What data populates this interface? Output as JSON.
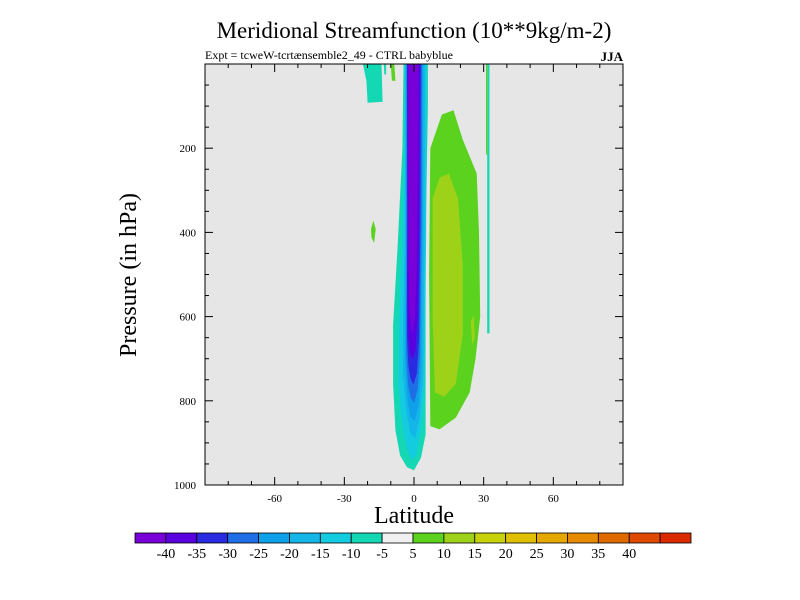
{
  "chart_data": {
    "type": "contour",
    "title": "Meridional Streamfunction (10**9kg/m-2)",
    "subtitle": "Expt = tcweW-tcrtænsemble2_49 - CTRL babyblue",
    "season": "JJA",
    "xlabel": "Latitude",
    "ylabel": "Pressure (in hPa)",
    "x_range": [
      -90,
      90
    ],
    "y_range": [
      0,
      1000
    ],
    "y_inverted": true,
    "x_ticks": [
      -60,
      -30,
      0,
      30,
      60
    ],
    "x_tick_labels": [
      "-60",
      "-30",
      "0",
      "30",
      "60"
    ],
    "y_ticks": [
      200,
      400,
      600,
      800,
      1000
    ],
    "y_tick_labels": [
      "200",
      "400",
      "600",
      "800",
      "1000"
    ],
    "background_color": "#e6e6e6",
    "colorbar": {
      "colors": [
        "#7800d8",
        "#5a00e0",
        "#2a2ae0",
        "#1e6ee6",
        "#0ea0e8",
        "#14b6e8",
        "#14cce0",
        "#14d8b4",
        "#f0f0f0",
        "#5ad21e",
        "#9ed218",
        "#c8d20a",
        "#e0c000",
        "#e6a800",
        "#e68a00",
        "#e06a00",
        "#e04a00",
        "#dc2a00"
      ],
      "labels": [
        "-40",
        "-35",
        "-30",
        "-25",
        "-20",
        "-15",
        "-10",
        "-5",
        "5",
        "10",
        "15",
        "20",
        "25",
        "30",
        "35",
        "40"
      ]
    },
    "contours": [
      {
        "level": "-10 to -5",
        "color": "#14d8b4",
        "points": [
          [
            -22,
            0
          ],
          [
            -14,
            0
          ],
          [
            -13.5,
            90
          ],
          [
            -20,
            92
          ],
          [
            -20.5,
            40
          ]
        ]
      },
      {
        "level": "-10 to -5",
        "color": "#14d8b4",
        "points": [
          [
            -13,
            0
          ],
          [
            -12,
            0
          ],
          [
            -12,
            25
          ],
          [
            -12.8,
            25
          ]
        ]
      },
      {
        "level": "5 to 10",
        "color": "#5ad21e",
        "points": [
          [
            -10,
            0
          ],
          [
            -8.5,
            0
          ],
          [
            -8,
            40
          ],
          [
            -9.5,
            40
          ]
        ]
      },
      {
        "level": "5 to 10",
        "color": "#5ad21e",
        "points": [
          [
            -18.5,
            392
          ],
          [
            -17.5,
            372
          ],
          [
            -16.5,
            392
          ],
          [
            -17.2,
            425
          ],
          [
            -18.3,
            412
          ]
        ]
      },
      {
        "level": "5 to 10",
        "color": "#5ad21e",
        "points": [
          [
            7,
            200
          ],
          [
            12,
            120
          ],
          [
            17,
            110
          ],
          [
            21,
            180
          ],
          [
            27,
            260
          ],
          [
            28,
            400
          ],
          [
            28.5,
            600
          ],
          [
            26.5,
            700
          ],
          [
            24,
            780
          ],
          [
            18,
            840
          ],
          [
            11,
            868
          ],
          [
            7,
            860
          ],
          [
            6.5,
            500
          ]
        ]
      },
      {
        "level": "-10 to -5",
        "color": "#14d8b4",
        "points": [
          [
            31.5,
            0
          ],
          [
            32.5,
            0
          ],
          [
            32.5,
            640
          ],
          [
            31.5,
            640
          ]
        ]
      },
      {
        "level": "5 to 10",
        "color": "#5ad21e",
        "points": [
          [
            31,
            0
          ],
          [
            31.5,
            0
          ],
          [
            31.5,
            215
          ],
          [
            31,
            215
          ]
        ]
      },
      {
        "level": "10 to 15",
        "color": "#9ed218",
        "points": [
          [
            8,
            320
          ],
          [
            11,
            270
          ],
          [
            15,
            260
          ],
          [
            19,
            320
          ],
          [
            21,
            480
          ],
          [
            21,
            640
          ],
          [
            18,
            760
          ],
          [
            13,
            790
          ],
          [
            9,
            780
          ],
          [
            8,
            600
          ]
        ]
      },
      {
        "level": "10 to 15",
        "color": "#9ed218",
        "points": [
          [
            24.5,
            610
          ],
          [
            25.8,
            598
          ],
          [
            26.2,
            650
          ],
          [
            25,
            668
          ]
        ]
      },
      {
        "level": "-5 to -10",
        "color": "#14d8b4",
        "points": [
          [
            -4.5,
            0
          ],
          [
            6,
            0
          ],
          [
            6,
            100
          ],
          [
            5,
            420
          ],
          [
            5,
            720
          ],
          [
            5,
            880
          ],
          [
            3,
            935
          ],
          [
            0,
            965
          ],
          [
            -3,
            958
          ],
          [
            -6,
            930
          ],
          [
            -8,
            870
          ],
          [
            -9,
            760
          ],
          [
            -9,
            620
          ],
          [
            -7,
            430
          ],
          [
            -5,
            200
          ]
        ]
      },
      {
        "level": "-10 to -15",
        "color": "#14cce0",
        "points": [
          [
            -4,
            0
          ],
          [
            5.5,
            0
          ],
          [
            5.2,
            420
          ],
          [
            4.5,
            760
          ],
          [
            3,
            870
          ],
          [
            1,
            930
          ],
          [
            -1,
            940
          ],
          [
            -3,
            915
          ],
          [
            -5,
            860
          ],
          [
            -6.8,
            760
          ],
          [
            -6.5,
            620
          ],
          [
            -5,
            420
          ],
          [
            -4.2,
            200
          ]
        ]
      },
      {
        "level": "-15 to -20",
        "color": "#14b6e8",
        "points": [
          [
            -3.8,
            0
          ],
          [
            4.8,
            0
          ],
          [
            4.5,
            400
          ],
          [
            4,
            740
          ],
          [
            2.5,
            840
          ],
          [
            0.5,
            890
          ],
          [
            -1.5,
            878
          ],
          [
            -3.2,
            830
          ],
          [
            -4.8,
            740
          ],
          [
            -4.8,
            620
          ],
          [
            -4,
            420
          ]
        ]
      },
      {
        "level": "-20 to -25",
        "color": "#0ea0e8",
        "points": [
          [
            -3.5,
            0
          ],
          [
            4,
            0
          ],
          [
            3.8,
            380
          ],
          [
            3.2,
            720
          ],
          [
            2,
            810
          ],
          [
            0.2,
            848
          ],
          [
            -1.5,
            838
          ],
          [
            -2.8,
            800
          ],
          [
            -3.8,
            720
          ],
          [
            -3.8,
            600
          ],
          [
            -3.5,
            400
          ]
        ]
      },
      {
        "level": "-25 to -30",
        "color": "#1e6ee6",
        "points": [
          [
            -3.2,
            0
          ],
          [
            3.5,
            0
          ],
          [
            3.3,
            380
          ],
          [
            2.6,
            690
          ],
          [
            1.6,
            772
          ],
          [
            0,
            805
          ],
          [
            -1.5,
            792
          ],
          [
            -2.6,
            760
          ],
          [
            -3.3,
            690
          ],
          [
            -3.3,
            580
          ],
          [
            -3.2,
            380
          ]
        ]
      },
      {
        "level": "-30 to -35",
        "color": "#2a2ae0",
        "points": [
          [
            -3,
            0
          ],
          [
            3,
            0
          ],
          [
            2.8,
            360
          ],
          [
            2.2,
            650
          ],
          [
            1.2,
            735
          ],
          [
            -0.2,
            762
          ],
          [
            -1.5,
            748
          ],
          [
            -2.4,
            715
          ],
          [
            -3,
            650
          ],
          [
            -3,
            560
          ],
          [
            -2.9,
            360
          ]
        ]
      },
      {
        "level": "-35 to -40",
        "color": "#5a00e0",
        "points": [
          [
            -2.8,
            0
          ],
          [
            2.4,
            0
          ],
          [
            2.2,
            360
          ],
          [
            1.6,
            600
          ],
          [
            0.6,
            680
          ],
          [
            -0.6,
            702
          ],
          [
            -1.6,
            690
          ],
          [
            -2.4,
            650
          ],
          [
            -2.8,
            560
          ],
          [
            -2.8,
            360
          ]
        ]
      },
      {
        "level": "< -40",
        "color": "#7800d8",
        "points": [
          [
            -2.5,
            0
          ],
          [
            2,
            0
          ],
          [
            1.8,
            260
          ],
          [
            1.3,
            480
          ],
          [
            0.4,
            600
          ],
          [
            -0.5,
            640
          ],
          [
            -1.3,
            625
          ],
          [
            -2,
            575
          ],
          [
            -2.4,
            480
          ],
          [
            -2.5,
            260
          ]
        ]
      }
    ]
  }
}
